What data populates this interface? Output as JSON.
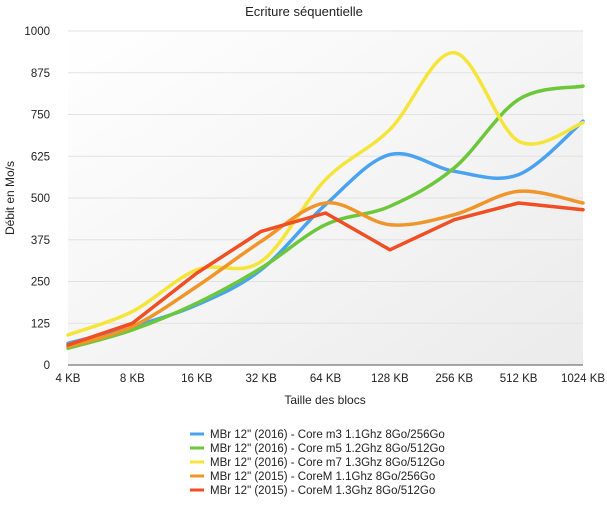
{
  "chart_data": {
    "type": "line",
    "title": "Ecriture séquentielle",
    "xlabel": "Taille des blocs",
    "ylabel": "Débit en Mo/s",
    "categories": [
      "4 KB",
      "8 KB",
      "16 KB",
      "32 KB",
      "64 KB",
      "128 KB",
      "256 KB",
      "512 KB",
      "1024 KB"
    ],
    "ylim": [
      0,
      1000
    ],
    "yticks": [
      "0",
      "125",
      "250",
      "375",
      "500",
      "625",
      "750",
      "875",
      "1000"
    ],
    "grid": "horizontal",
    "legend_position": "bottom-center",
    "series": [
      {
        "name": "MBr 12\" (2016) - Core m3 1.1Ghz  8Go/256Go",
        "color": "#4aa3f0",
        "values": [
          65,
          115,
          180,
          285,
          480,
          630,
          580,
          570,
          730
        ]
      },
      {
        "name": "MBr 12\" (2016) - Core m5 1.2Ghz  8Go/512Go",
        "color": "#6cc83a",
        "values": [
          50,
          105,
          185,
          290,
          420,
          475,
          590,
          795,
          835
        ]
      },
      {
        "name": "MBr 12\" (2016) - Core m7 1.3Ghz  8Go/512Go",
        "color": "#f5e53a",
        "values": [
          90,
          160,
          285,
          310,
          555,
          705,
          935,
          670,
          725
        ]
      },
      {
        "name": "MBr 12\" (2015) - CoreM 1.1Ghz 8Go/256Go",
        "color": "#f0952a",
        "values": [
          55,
          115,
          235,
          370,
          485,
          420,
          450,
          520,
          485
        ]
      },
      {
        "name": "MBr 12\" (2015) - CoreM 1.3Ghz 8Go/512Go",
        "color": "#f04e23",
        "values": [
          60,
          125,
          275,
          400,
          455,
          345,
          435,
          485,
          465
        ]
      }
    ]
  }
}
